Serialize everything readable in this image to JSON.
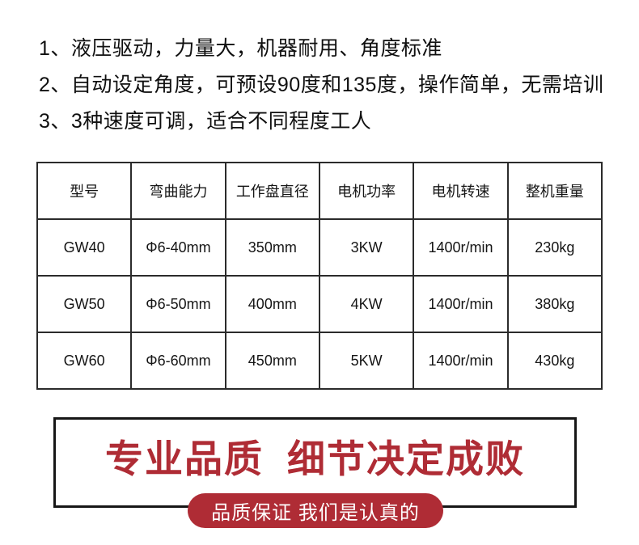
{
  "features": [
    "1、液压驱动，力量大，机器耐用、角度标准",
    "2、自动设定角度，可预设90度和135度，操作简单，无需培训",
    "3、3种速度可调，适合不同程度工人"
  ],
  "spec_table": {
    "headers": [
      "型号",
      "弯曲能力",
      "工作盘直径",
      "电机功率",
      "电机转速",
      "整机重量"
    ],
    "rows": [
      [
        "GW40",
        "Φ6-40mm",
        "350mm",
        "3KW",
        "1400r/min",
        "230kg"
      ],
      [
        "GW50",
        "Φ6-50mm",
        "400mm",
        "4KW",
        "1400r/min",
        "380kg"
      ],
      [
        "GW60",
        "Φ6-60mm",
        "450mm",
        "5KW",
        "1400r/min",
        "430kg"
      ]
    ]
  },
  "banner": {
    "headline": "专业品质 细节决定成败",
    "badge_label": "品质保证 我们是认真的"
  },
  "colors": {
    "accent_red": "#AF2C35",
    "badge_text": "#FFFFFF",
    "banner_border": "#161616",
    "table_border": "#2B2B2B",
    "text": "#0F0F0F",
    "background": "#FFFFFF"
  }
}
